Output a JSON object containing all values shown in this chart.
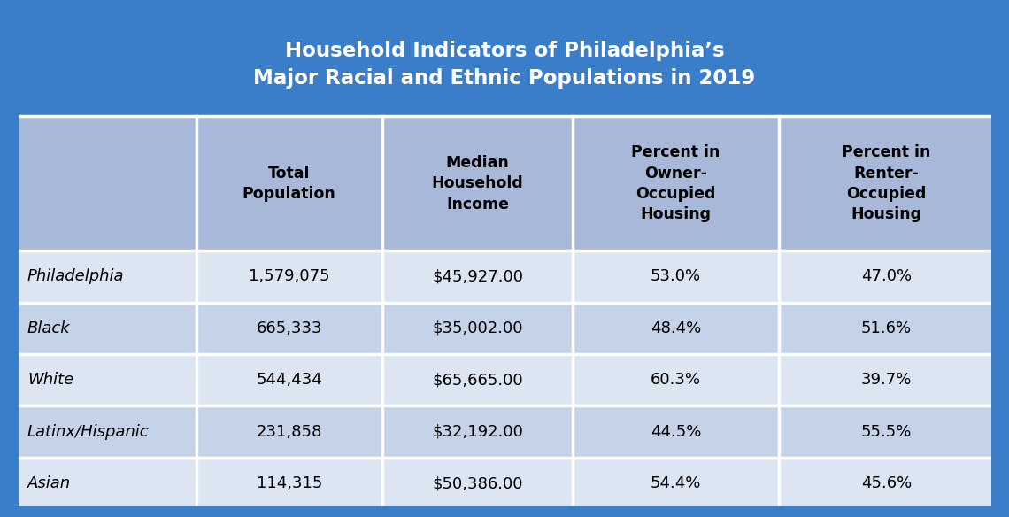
{
  "title_line1": "Household Indicators of Philadelphia’s",
  "title_line2": "Major Racial and Ethnic Populations in 2019",
  "col_headers": [
    "Total\nPopulation",
    "Median\nHousehold\nIncome",
    "Percent in\nOwner-\nOccupied\nHousing",
    "Percent in\nRenter-\nOccupied\nHousing"
  ],
  "row_labels": [
    "Philadelphia",
    "Black",
    "White",
    "Latinx/Hispanic",
    "Asian"
  ],
  "table_data": [
    [
      "1,579,075",
      "$45,927.00",
      "53.0%",
      "47.0%"
    ],
    [
      "665,333",
      "$35,002.00",
      "48.4%",
      "51.6%"
    ],
    [
      "544,434",
      "$65,665.00",
      "60.3%",
      "39.7%"
    ],
    [
      "231,858",
      "$32,192.00",
      "44.5%",
      "55.5%"
    ],
    [
      "114,315",
      "$50,386.00",
      "54.4%",
      "45.6%"
    ]
  ],
  "title_bg_color": "#3A7DC9",
  "header_bg_color": "#A8B8D8",
  "row_bg_even": "#C5D3E8",
  "row_bg_odd": "#DCE5F2",
  "title_text_color": "#FFFFFF",
  "header_text_color": "#000000",
  "border_color": "#FFFFFF",
  "outer_border_color": "#3A7DC9"
}
